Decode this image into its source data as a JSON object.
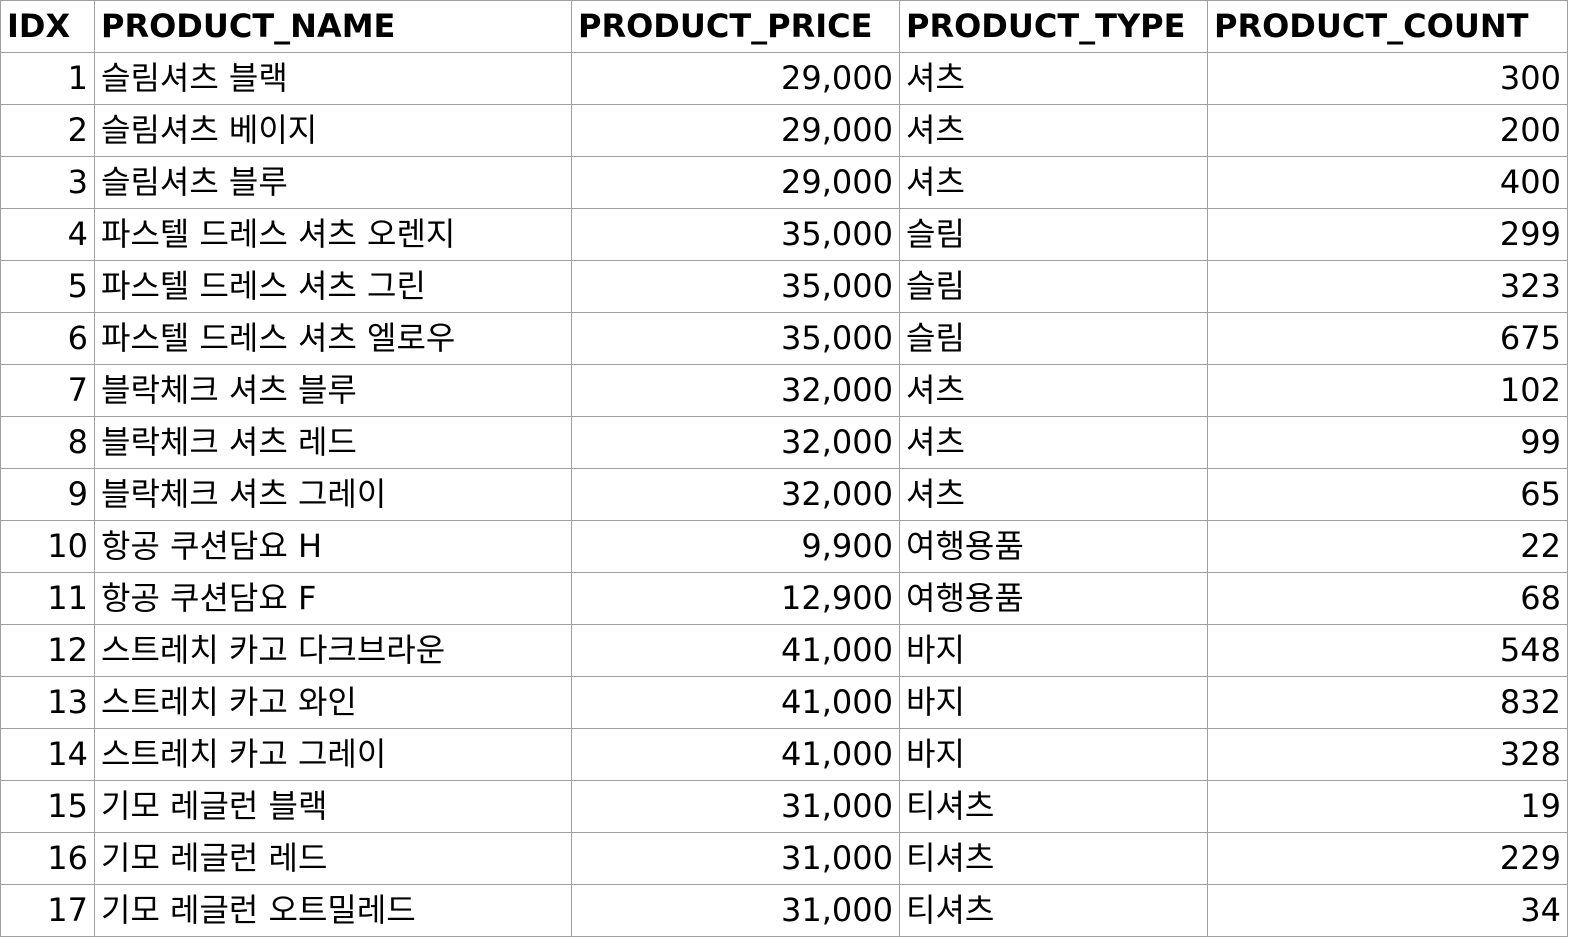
{
  "table": {
    "columns": [
      "IDX",
      "PRODUCT_NAME",
      "PRODUCT_PRICE",
      "PRODUCT_TYPE",
      "PRODUCT_COUNT"
    ],
    "rows": [
      {
        "idx": "1",
        "name": "슬림셔츠 블랙",
        "price": "29,000",
        "type": "셔츠",
        "count": "300"
      },
      {
        "idx": "2",
        "name": "슬림셔츠 베이지",
        "price": "29,000",
        "type": "셔츠",
        "count": "200"
      },
      {
        "idx": "3",
        "name": "슬림셔츠 블루",
        "price": "29,000",
        "type": "셔츠",
        "count": "400"
      },
      {
        "idx": "4",
        "name": "파스텔 드레스 셔츠 오렌지",
        "price": "35,000",
        "type": "슬림",
        "count": "299"
      },
      {
        "idx": "5",
        "name": "파스텔 드레스 셔츠 그린",
        "price": "35,000",
        "type": "슬림",
        "count": "323"
      },
      {
        "idx": "6",
        "name": "파스텔 드레스 셔츠 엘로우",
        "price": "35,000",
        "type": "슬림",
        "count": "675"
      },
      {
        "idx": "7",
        "name": "블락체크 셔츠 블루",
        "price": "32,000",
        "type": "셔츠",
        "count": "102"
      },
      {
        "idx": "8",
        "name": "블락체크 셔츠 레드",
        "price": "32,000",
        "type": "셔츠",
        "count": "99"
      },
      {
        "idx": "9",
        "name": "블락체크 셔츠 그레이",
        "price": "32,000",
        "type": "셔츠",
        "count": "65"
      },
      {
        "idx": "10",
        "name": "항공 쿠션담요 H",
        "price": "9,900",
        "type": "여행용품",
        "count": "22"
      },
      {
        "idx": "11",
        "name": "항공 쿠션담요 F",
        "price": "12,900",
        "type": "여행용품",
        "count": "68"
      },
      {
        "idx": "12",
        "name": "스트레치 카고 다크브라운",
        "price": "41,000",
        "type": "바지",
        "count": "548"
      },
      {
        "idx": "13",
        "name": "스트레치 카고 와인",
        "price": "41,000",
        "type": "바지",
        "count": "832"
      },
      {
        "idx": "14",
        "name": "스트레치 카고 그레이",
        "price": "41,000",
        "type": "바지",
        "count": "328"
      },
      {
        "idx": "15",
        "name": "기모 레글런 블랙",
        "price": "31,000",
        "type": "티셔츠",
        "count": "19"
      },
      {
        "idx": "16",
        "name": "기모 레글런 레드",
        "price": "31,000",
        "type": "티셔츠",
        "count": "229"
      },
      {
        "idx": "17",
        "name": "기모 레글런 오트밀레드",
        "price": "31,000",
        "type": "티셔츠",
        "count": "34"
      }
    ]
  }
}
